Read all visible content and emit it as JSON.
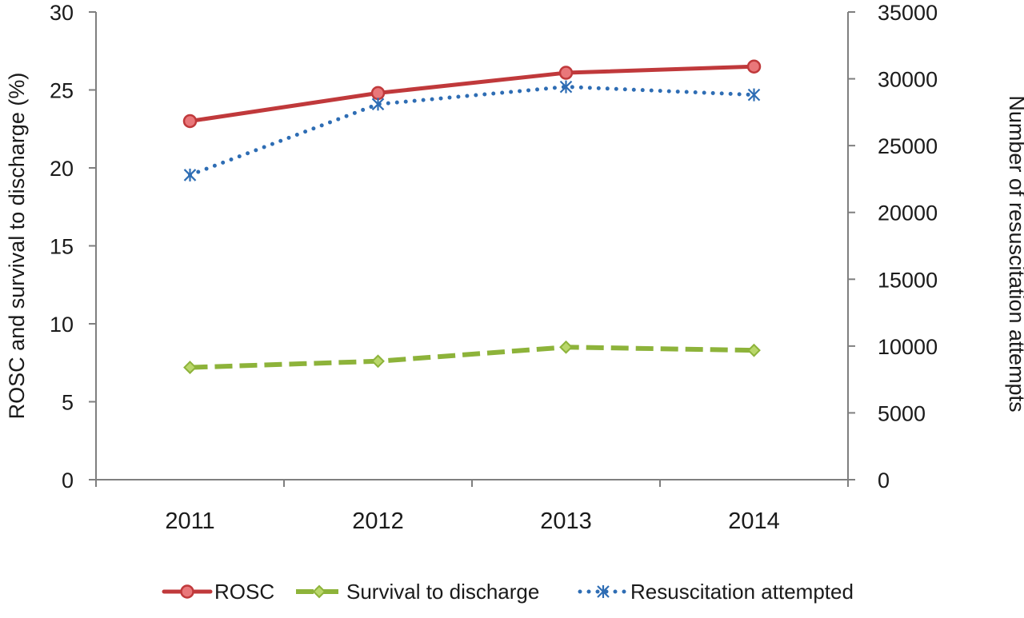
{
  "chart_data": {
    "type": "line",
    "categories": [
      "2011",
      "2012",
      "2013",
      "2014"
    ],
    "series": [
      {
        "name": "ROSC",
        "axis": "left",
        "values": [
          23.0,
          24.8,
          26.1,
          26.5
        ],
        "color": "#c0393b",
        "style": "solid",
        "marker": "circle"
      },
      {
        "name": "Survival to discharge",
        "axis": "left",
        "values": [
          7.2,
          7.6,
          8.5,
          8.3
        ],
        "color": "#8db33a",
        "style": "dashed",
        "marker": "diamond"
      },
      {
        "name": "Resuscitation attempted",
        "axis": "right",
        "values": [
          22800,
          28100,
          29400,
          28800
        ],
        "color": "#2e6db4",
        "style": "dotted",
        "marker": "star"
      }
    ],
    "y_left": {
      "label": "ROSC and survival to discharge (%)",
      "range": [
        0,
        30
      ],
      "ticks": [
        "0",
        "5",
        "10",
        "15",
        "20",
        "25",
        "30"
      ]
    },
    "y_right": {
      "label": "Number of resuscitation attempts",
      "range": [
        0,
        35000
      ],
      "ticks": [
        "0",
        "5000",
        "10000",
        "15000",
        "20000",
        "25000",
        "30000",
        "35000"
      ]
    },
    "grid": false,
    "legend_position": "bottom"
  }
}
